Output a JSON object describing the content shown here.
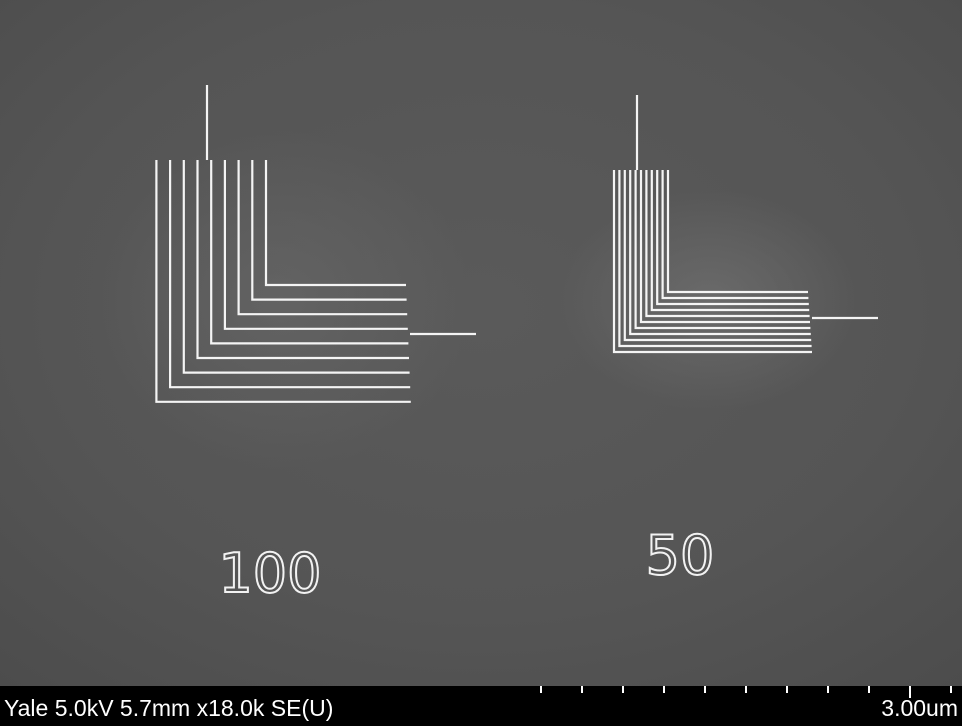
{
  "labels": {
    "left_pattern": "100",
    "right_pattern": "50"
  },
  "info_bar": {
    "settings": "Yale 5.0kV 5.7mm x18.0k SE(U)",
    "scale": "3.00um"
  }
}
